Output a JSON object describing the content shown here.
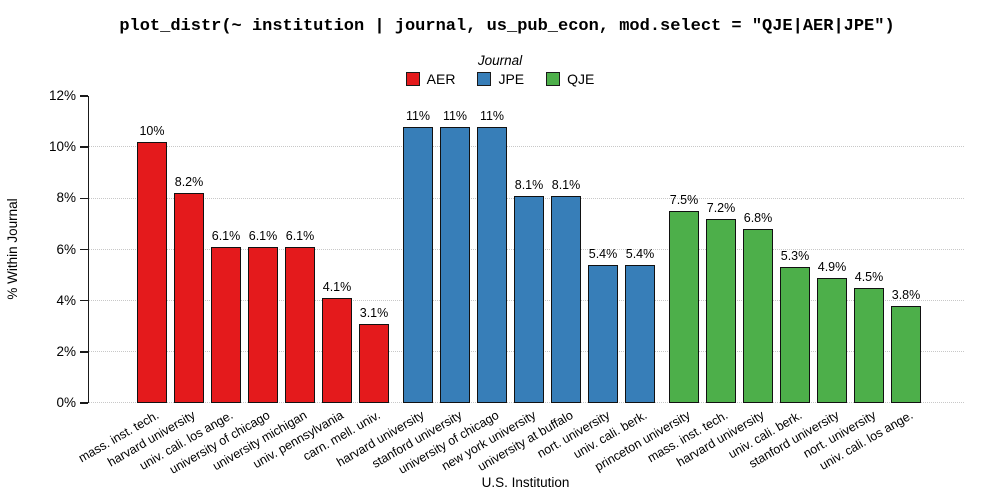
{
  "title": "plot_distr(~ institution | journal, us_pub_econ, mod.select = \"QJE|AER|JPE\")",
  "legend": {
    "title": "Journal",
    "items": [
      {
        "label": "AER",
        "color": "#E41A1C"
      },
      {
        "label": "JPE",
        "color": "#377EB8"
      },
      {
        "label": "QJE",
        "color": "#4DAF4A"
      }
    ]
  },
  "axes": {
    "y_label": "% Within Journal",
    "x_label": "U.S. Institution",
    "y_ticks": [
      "0%",
      "2%",
      "4%",
      "6%",
      "8%",
      "10%",
      "12%"
    ]
  },
  "chart_data": {
    "type": "bar",
    "title": "plot_distr(~ institution | journal, us_pub_econ, mod.select = \"QJE|AER|JPE\")",
    "xlabel": "U.S. Institution",
    "ylabel": "% Within Journal",
    "ylim": [
      0,
      12
    ],
    "y_tick_step": 2,
    "grid": "horizontal dotted gridlines at 0%,2%,4%,6%,8%,10%",
    "legend_position": "top-center",
    "legend_title": "Journal",
    "series": [
      {
        "name": "AER",
        "color": "#E41A1C",
        "categories": [
          "mass. inst. tech.",
          "harvard university",
          "univ. cali. los ange.",
          "university of chicago",
          "university michigan",
          "univ. pennsylvania",
          "carn. mell. univ."
        ],
        "values": [
          10.2,
          8.2,
          6.1,
          6.1,
          6.1,
          4.1,
          3.1
        ],
        "labels": [
          "10%",
          "8.2%",
          "6.1%",
          "6.1%",
          "6.1%",
          "4.1%",
          "3.1%"
        ]
      },
      {
        "name": "JPE",
        "color": "#377EB8",
        "categories": [
          "harvard university",
          "stanford university",
          "university of chicago",
          "new york university",
          "university at buffalo",
          "nort. university",
          "univ. cali. berk."
        ],
        "values": [
          10.8,
          10.8,
          10.8,
          8.1,
          8.1,
          5.4,
          5.4
        ],
        "labels": [
          "11%",
          "11%",
          "11%",
          "8.1%",
          "8.1%",
          "5.4%",
          "5.4%"
        ]
      },
      {
        "name": "QJE",
        "color": "#4DAF4A",
        "categories": [
          "princeton university",
          "mass. inst. tech.",
          "harvard university",
          "univ. cali. berk.",
          "stanford university",
          "nort. university",
          "univ. cali. los ange."
        ],
        "values": [
          7.5,
          7.2,
          6.8,
          5.3,
          4.9,
          4.5,
          3.8
        ],
        "labels": [
          "7.5%",
          "7.2%",
          "6.8%",
          "5.3%",
          "4.9%",
          "4.5%",
          "3.8%"
        ]
      }
    ]
  }
}
